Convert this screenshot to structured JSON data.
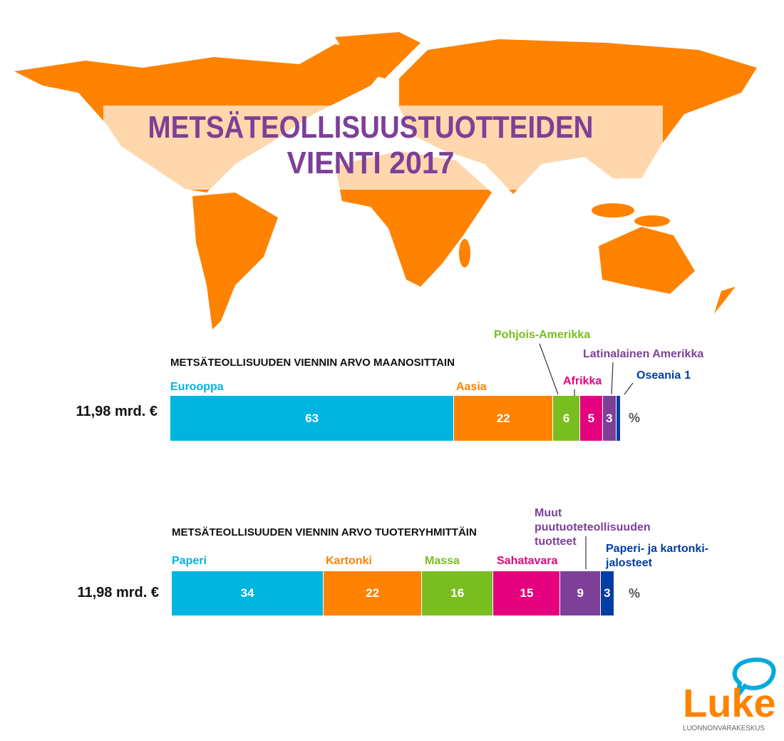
{
  "title": [
    "METSÄTEOLLISUUSTUOTTEIDEN",
    "VIENTI 2017"
  ],
  "logo": {
    "name": "Luke",
    "tagline": "LUONNONVARAKESKUS"
  },
  "chart_data": [
    {
      "type": "stacked-bar",
      "title": "METSÄTEOLLISUUDEN VIENNIN ARVO MAANOSITTAIN",
      "total_label": "11,98 mrd. €",
      "unit": "%",
      "xlim": [
        0,
        100
      ],
      "series": [
        {
          "name": "Eurooppa",
          "color": "#00b4e0",
          "values": [
            63
          ]
        },
        {
          "name": "Aasia",
          "color": "#ff8200",
          "values": [
            22
          ]
        },
        {
          "name": "Pohjois-Amerikka",
          "color": "#78be20",
          "values": [
            6
          ]
        },
        {
          "name": "Afrikka",
          "color": "#e5007e",
          "values": [
            5
          ]
        },
        {
          "name": "Latinalainen Amerikka",
          "color": "#7d3f98",
          "values": [
            3
          ]
        },
        {
          "name": "Oseania",
          "color": "#003da5",
          "values": [
            1
          ]
        }
      ]
    },
    {
      "type": "stacked-bar",
      "title": "METSÄTEOLLISUUDEN VIENNIN ARVO TUOTERYHMITTÄIN",
      "total_label": "11,98 mrd. €",
      "unit": "%",
      "xlim": [
        0,
        100
      ],
      "series": [
        {
          "name": "Paperi",
          "color": "#00b4e0",
          "values": [
            34
          ]
        },
        {
          "name": "Kartonki",
          "color": "#ff8200",
          "values": [
            22
          ]
        },
        {
          "name": "Massa",
          "color": "#78be20",
          "values": [
            16
          ]
        },
        {
          "name": "Sahatavara",
          "color": "#e5007e",
          "values": [
            15
          ]
        },
        {
          "name": "Muut puutuoteteollisuuden tuotteet",
          "color": "#7d3f98",
          "values": [
            9
          ]
        },
        {
          "name": "Paperi- ja kartonki-jalosteet",
          "color": "#003da5",
          "values": [
            3
          ]
        }
      ]
    }
  ]
}
